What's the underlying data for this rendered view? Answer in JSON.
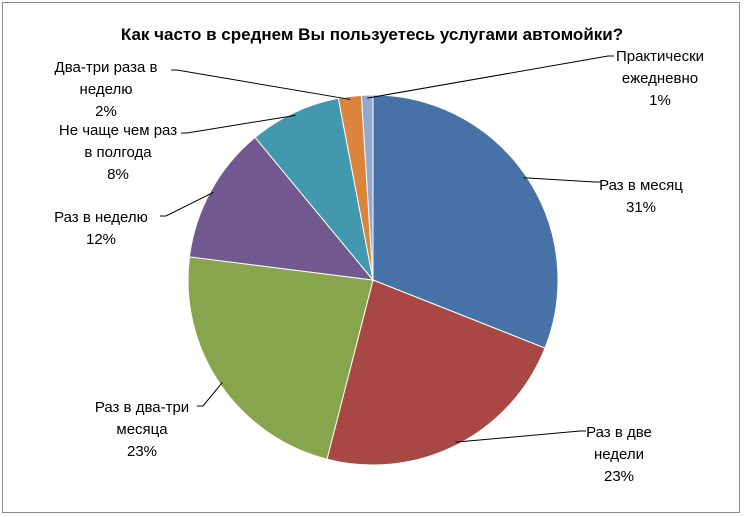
{
  "chart_data": {
    "type": "pie",
    "title": "Как часто в среднем Вы пользуетесь услугами автомойки?",
    "start_angle_deg": 0,
    "direction": "clockwise",
    "slices": [
      {
        "label": [
          "Раз в месяц"
        ],
        "percent_text": "31%",
        "value": 31,
        "color": "#4672a8"
      },
      {
        "label": [
          "Раз в две",
          "недели"
        ],
        "percent_text": "23%",
        "value": 23,
        "color": "#a94745"
      },
      {
        "label": [
          "Раз в два-три",
          "месяца"
        ],
        "percent_text": "23%",
        "value": 23,
        "color": "#87a54c"
      },
      {
        "label": [
          "Раз в неделю"
        ],
        "percent_text": "12%",
        "value": 12,
        "color": "#71588f"
      },
      {
        "label": [
          "Не чаще чем раз",
          "в полгода"
        ],
        "percent_text": "8%",
        "value": 8,
        "color": "#4298ae"
      },
      {
        "label": [
          "Два-три раза в",
          "неделю"
        ],
        "percent_text": "2%",
        "value": 2,
        "color": "#db843d"
      },
      {
        "label": [
          "Практически",
          "ежедневно"
        ],
        "percent_text": "1%",
        "value": 1,
        "color": "#93a9cf"
      }
    ],
    "legend": "none",
    "data_labels": "outside-with-leader-lines"
  }
}
